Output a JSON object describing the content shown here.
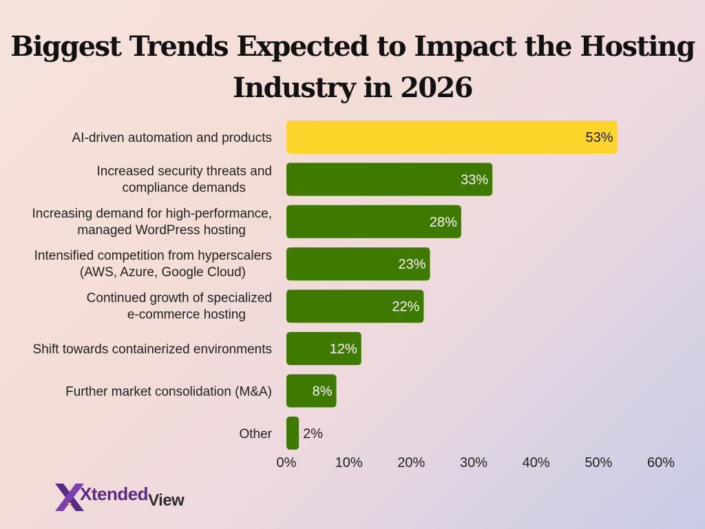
{
  "title": {
    "line1": "Biggest Trends Expected to Impact the Hosting",
    "line2": "Industry in 2026"
  },
  "logo": {
    "main": "Xtended",
    "suffix": "View"
  },
  "colors": {
    "highlight": "#FDD52A",
    "bar": "#3F7A00",
    "highlight_text": "#1a1a1a",
    "bar_text": "#ffffff"
  },
  "chart_data": {
    "type": "bar",
    "orientation": "horizontal",
    "title": "Biggest Trends Expected to Impact the Hosting Industry in 2026",
    "categories": [
      [
        "AI-driven automation and products"
      ],
      [
        "Increased security threats and",
        "compliance demands"
      ],
      [
        "Increasing demand for high-performance,",
        "managed WordPress hosting"
      ],
      [
        "Intensified competition from hyperscalers",
        "(AWS, Azure, Google Cloud)"
      ],
      [
        "Continued growth of specialized",
        "e-commerce hosting"
      ],
      [
        "Shift towards containerized environments"
      ],
      [
        "Further market consolidation (M&A)"
      ],
      [
        "Other"
      ]
    ],
    "values": [
      53,
      33,
      28,
      23,
      22,
      12,
      8,
      2
    ],
    "value_labels": [
      "53%",
      "33%",
      "28%",
      "23%",
      "22%",
      "12%",
      "8%",
      "2%"
    ],
    "xlim": [
      0,
      60
    ],
    "xticks": [
      0,
      10,
      20,
      30,
      40,
      50,
      60
    ],
    "xtick_labels": [
      "0%",
      "10%",
      "20%",
      "30%",
      "40%",
      "50%",
      "60%"
    ],
    "highlight_index": 0,
    "grid": false,
    "legend": "none"
  }
}
